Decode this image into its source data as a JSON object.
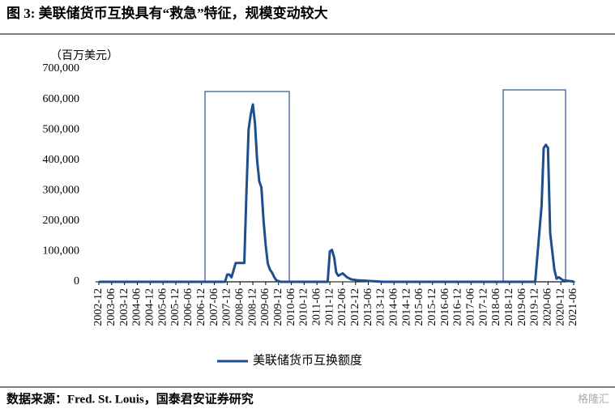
{
  "chart_data": {
    "type": "line",
    "title": "图 3: 美联储货币互换具有“救急”特征，规模变动较大",
    "y_unit": "（百万美元）",
    "source": "数据来源：Fred. St. Louis，国泰君安证券研究",
    "watermark": "格隆汇",
    "x": [
      "2002-12",
      "2007-11",
      "2007-12",
      "2008-01",
      "2008-02",
      "2008-04",
      "2008-08",
      "2008-09",
      "2008-10",
      "2008-11",
      "2008-12",
      "2009-01",
      "2009-02",
      "2009-03",
      "2009-04",
      "2009-05",
      "2009-06",
      "2009-07",
      "2009-08",
      "2009-09",
      "2009-10",
      "2009-11",
      "2009-12",
      "2010-01",
      "2011-11",
      "2011-12",
      "2012-01",
      "2012-02",
      "2012-03",
      "2012-04",
      "2012-06",
      "2012-08",
      "2012-10",
      "2013-01",
      "2013-06",
      "2014-01",
      "2019-12",
      "2020-03",
      "2020-04",
      "2020-05",
      "2020-06",
      "2020-07",
      "2020-08",
      "2020-09",
      "2020-10",
      "2020-11",
      "2020-12",
      "2021-01",
      "2021-06"
    ],
    "series": [
      {
        "name": "美联储货币互换额度",
        "color": "#1f4e8c",
        "values": [
          0,
          0,
          24000,
          24000,
          15000,
          62000,
          62000,
          290000,
          500000,
          550000,
          583000,
          520000,
          400000,
          330000,
          310000,
          200000,
          120000,
          60000,
          40000,
          30000,
          15000,
          5000,
          2000,
          0,
          0,
          100000,
          105000,
          80000,
          30000,
          20000,
          28000,
          15000,
          8000,
          5000,
          3000,
          0,
          0,
          250000,
          440000,
          450000,
          440000,
          160000,
          100000,
          40000,
          10000,
          15000,
          10000,
          5000,
          1000
        ]
      }
    ],
    "xlim": [
      "2002-12",
      "2021-06"
    ],
    "xticks": [
      "2002-12",
      "2003-06",
      "2003-12",
      "2004-06",
      "2004-12",
      "2005-06",
      "2005-12",
      "2006-06",
      "2006-12",
      "2007-06",
      "2007-12",
      "2008-06",
      "2008-12",
      "2009-06",
      "2009-12",
      "2010-06",
      "2010-12",
      "2011-06",
      "2011-12",
      "2012-06",
      "2012-12",
      "2013-06",
      "2013-12",
      "2014-06",
      "2014-12",
      "2015-06",
      "2015-12",
      "2016-06",
      "2016-12",
      "2017-06",
      "2017-12",
      "2018-06",
      "2018-12",
      "2019-06",
      "2019-12",
      "2020-06",
      "2020-12",
      "2021-06"
    ],
    "ylim": [
      0,
      700000
    ],
    "yticks": [
      0,
      {
        "value": 100000,
        "label": "100,000"
      },
      {
        "value": 200000,
        "label": "200,000"
      },
      {
        "value": 300000,
        "label": "300,000"
      },
      {
        "value": 400000,
        "label": "400,000"
      },
      {
        "value": 500000,
        "label": "500,000"
      },
      {
        "value": 600000,
        "label": "600,000"
      },
      {
        "value": 700000,
        "label": "700,000"
      }
    ],
    "grid": false
  }
}
